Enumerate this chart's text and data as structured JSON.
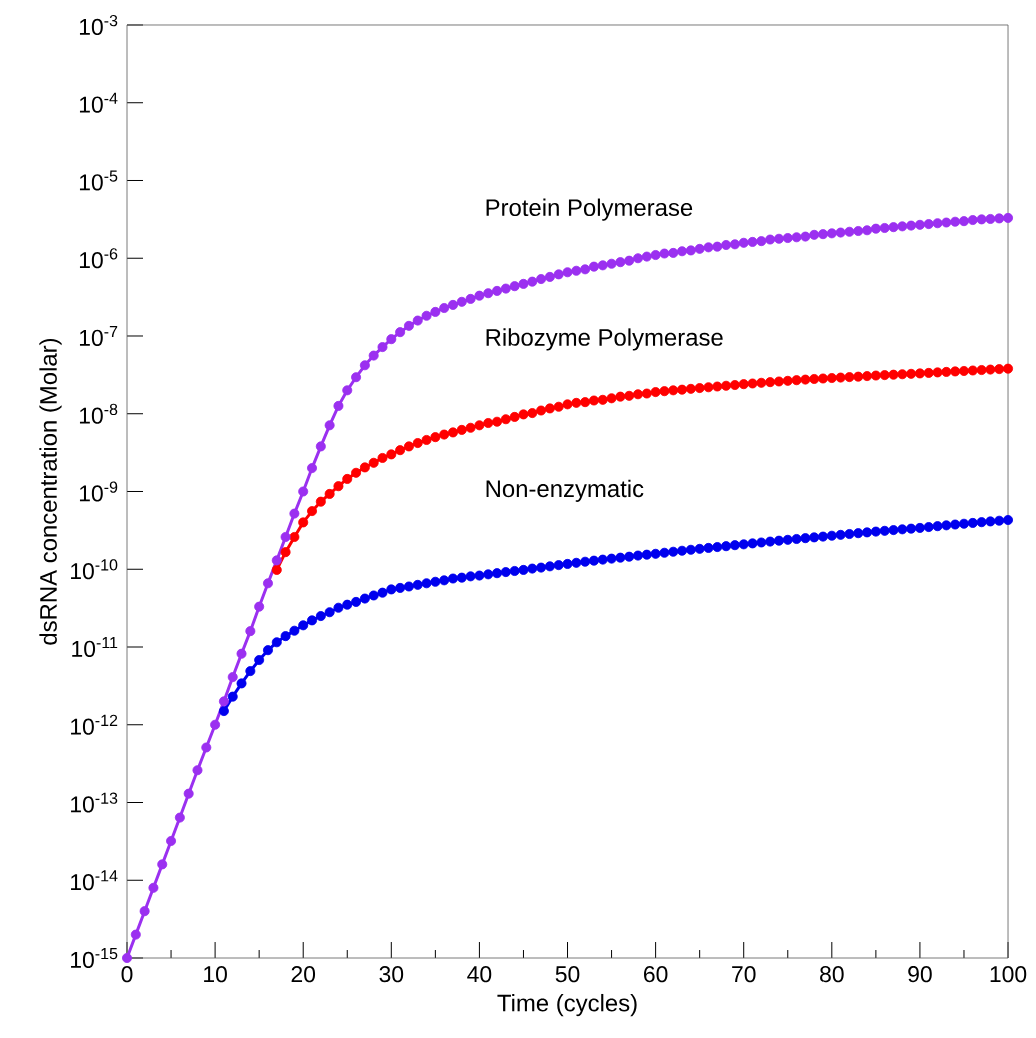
{
  "chart_data": {
    "type": "line",
    "xlabel": "Time (cycles)",
    "ylabel": "dsRNA concentration (Molar)",
    "x": [
      0,
      1,
      2,
      3,
      4,
      5,
      6,
      7,
      8,
      9,
      10,
      11,
      12,
      13,
      14,
      15,
      16,
      17,
      18,
      19,
      20,
      21,
      22,
      23,
      24,
      25,
      26,
      27,
      28,
      29,
      30,
      31,
      32,
      33,
      34,
      35,
      36,
      37,
      38,
      39,
      40,
      41,
      42,
      43,
      44,
      45,
      46,
      47,
      48,
      49,
      50,
      51,
      52,
      53,
      54,
      55,
      56,
      57,
      58,
      59,
      60,
      61,
      62,
      63,
      64,
      65,
      66,
      67,
      68,
      69,
      70,
      71,
      72,
      73,
      74,
      75,
      76,
      77,
      78,
      79,
      80,
      81,
      82,
      83,
      84,
      85,
      86,
      87,
      88,
      89,
      90,
      91,
      92,
      93,
      94,
      95,
      96,
      97,
      98,
      99,
      100
    ],
    "series": [
      {
        "name": "Non-enzymatic",
        "color": "#0000ee",
        "x": [
          11,
          12,
          13,
          14,
          15,
          16,
          17,
          18,
          19,
          20,
          21,
          22,
          23,
          24,
          25,
          26,
          27,
          28,
          29,
          30,
          31,
          32,
          33,
          34,
          35,
          36,
          37,
          38,
          39,
          40,
          41,
          42,
          43,
          44,
          45,
          46,
          47,
          48,
          49,
          50,
          51,
          52,
          53,
          54,
          55,
          56,
          57,
          58,
          59,
          60,
          61,
          62,
          63,
          64,
          65,
          66,
          67,
          68,
          69,
          70,
          71,
          72,
          73,
          74,
          75,
          76,
          77,
          78,
          79,
          80,
          81,
          82,
          83,
          84,
          85,
          86,
          87,
          88,
          89,
          90,
          91,
          92,
          93,
          94,
          95,
          96,
          97,
          98,
          99,
          100
        ],
        "values": [
          1.5e-12,
          2.3e-12,
          3.4e-12,
          4.9e-12,
          6.8e-12,
          9.1e-12,
          1.15e-11,
          1.38e-11,
          1.62e-11,
          1.9e-11,
          2.2e-11,
          2.5e-11,
          2.8e-11,
          3.2e-11,
          3.5e-11,
          3.8e-11,
          4.2e-11,
          4.6e-11,
          5e-11,
          5.5e-11,
          5.75e-11,
          6e-11,
          6.3e-11,
          6.6e-11,
          6.9e-11,
          7.2e-11,
          7.6e-11,
          7.8e-11,
          8.1e-11,
          8.3e-11,
          8.6e-11,
          8.9e-11,
          9.2e-11,
          9.5e-11,
          9.8e-11,
          1.02e-10,
          1.05e-10,
          1.09e-10,
          1.13e-10,
          1.17e-10,
          1.21e-10,
          1.25e-10,
          1.29e-10,
          1.33e-10,
          1.37e-10,
          1.41e-10,
          1.45e-10,
          1.5e-10,
          1.54e-10,
          1.58e-10,
          1.63e-10,
          1.68e-10,
          1.73e-10,
          1.78e-10,
          1.83e-10,
          1.88e-10,
          1.93e-10,
          1.98e-10,
          2.04e-10,
          2.09e-10,
          2.15e-10,
          2.21e-10,
          2.27e-10,
          2.33e-10,
          2.39e-10,
          2.45e-10,
          2.51e-10,
          2.57e-10,
          2.63e-10,
          2.7e-10,
          2.77e-10,
          2.84e-10,
          2.91e-10,
          2.98e-10,
          3.05e-10,
          3.12e-10,
          3.19e-10,
          3.26e-10,
          3.33e-10,
          3.4e-10,
          3.49e-10,
          3.58e-10,
          3.67e-10,
          3.76e-10,
          3.85e-10,
          3.94e-10,
          4.03e-10,
          4.12e-10,
          4.21e-10,
          4.3e-10
        ]
      },
      {
        "name": "Ribozyme Polymerase",
        "color": "#ff0000",
        "x": [
          17,
          18,
          19,
          20,
          21,
          22,
          23,
          24,
          25,
          26,
          27,
          28,
          29,
          30,
          31,
          32,
          33,
          34,
          35,
          36,
          37,
          38,
          39,
          40,
          41,
          42,
          43,
          44,
          45,
          46,
          47,
          48,
          49,
          50,
          51,
          52,
          53,
          54,
          55,
          56,
          57,
          58,
          59,
          60,
          61,
          62,
          63,
          64,
          65,
          66,
          67,
          68,
          69,
          70,
          71,
          72,
          73,
          74,
          75,
          76,
          77,
          78,
          79,
          80,
          81,
          82,
          83,
          84,
          85,
          86,
          87,
          88,
          89,
          90,
          91,
          92,
          93,
          94,
          95,
          96,
          97,
          98,
          99,
          100
        ],
        "values": [
          9.8e-11,
          1.66e-10,
          2.6e-10,
          4e-10,
          5.6e-10,
          7.4e-10,
          9.3e-10,
          1.17e-09,
          1.45e-09,
          1.74e-09,
          2.04e-09,
          2.34e-09,
          2.7e-09,
          3e-09,
          3.4e-09,
          3.8e-09,
          4.2e-09,
          4.6e-09,
          5e-09,
          5.4e-09,
          5.75e-09,
          6.2e-09,
          6.6e-09,
          7.1e-09,
          7.6e-09,
          7.9e-09,
          8.5e-09,
          9.1e-09,
          9.8e-09,
          1.02e-08,
          1.1e-08,
          1.17e-08,
          1.23e-08,
          1.32e-08,
          1.38e-08,
          1.41e-08,
          1.48e-08,
          1.51e-08,
          1.58e-08,
          1.66e-08,
          1.7e-08,
          1.78e-08,
          1.82e-08,
          1.9e-08,
          1.95e-08,
          2e-08,
          2.04e-08,
          2.09e-08,
          2.14e-08,
          2.19e-08,
          2.24e-08,
          2.29e-08,
          2.34e-08,
          2.4e-08,
          2.45e-08,
          2.5e-08,
          2.55e-08,
          2.6e-08,
          2.65e-08,
          2.7e-08,
          2.75e-08,
          2.8e-08,
          2.84e-08,
          2.88e-08,
          2.92e-08,
          2.96e-08,
          3e-08,
          3.05e-08,
          3.1e-08,
          3.14e-08,
          3.18e-08,
          3.22e-08,
          3.26e-08,
          3.3e-08,
          3.35e-08,
          3.4e-08,
          3.45e-08,
          3.5e-08,
          3.55e-08,
          3.6e-08,
          3.65e-08,
          3.7e-08,
          3.75e-08,
          3.8e-08
        ]
      },
      {
        "name": "Protein Polymerase",
        "color": "#9b30f0",
        "values": [
          1e-15,
          2e-15,
          4e-15,
          8e-15,
          1.6e-14,
          3.2e-14,
          6.4e-14,
          1.3e-13,
          2.6e-13,
          5.1e-13,
          1e-12,
          2e-12,
          4.1e-12,
          8.2e-12,
          1.6e-11,
          3.3e-11,
          6.6e-11,
          1.3e-10,
          2.6e-10,
          5.2e-10,
          1e-09,
          2e-09,
          3.8e-09,
          7.1e-09,
          1.26e-08,
          2e-08,
          2.95e-08,
          4.2e-08,
          5.6e-08,
          7.2e-08,
          9.1e-08,
          1.12e-07,
          1.35e-07,
          1.58e-07,
          1.82e-07,
          2.04e-07,
          2.29e-07,
          2.51e-07,
          2.75e-07,
          3e-07,
          3.3e-07,
          3.55e-07,
          3.8e-07,
          4.07e-07,
          4.37e-07,
          4.68e-07,
          5e-07,
          5.4e-07,
          5.75e-07,
          6.2e-07,
          6.6e-07,
          6.9e-07,
          7.2e-07,
          7.8e-07,
          8.1e-07,
          8.5e-07,
          8.9e-07,
          9.3e-07,
          1e-06,
          1.05e-06,
          1.1e-06,
          1.15e-06,
          1.17e-06,
          1.23e-06,
          1.26e-06,
          1.32e-06,
          1.38e-06,
          1.41e-06,
          1.48e-06,
          1.51e-06,
          1.58e-06,
          1.62e-06,
          1.66e-06,
          1.74e-06,
          1.78e-06,
          1.82e-06,
          1.86e-06,
          1.9e-06,
          2e-06,
          2.04e-06,
          2.09e-06,
          2.14e-06,
          2.19e-06,
          2.24e-06,
          2.29e-06,
          2.4e-06,
          2.45e-06,
          2.51e-06,
          2.57e-06,
          2.63e-06,
          2.69e-06,
          2.75e-06,
          2.82e-06,
          2.88e-06,
          2.95e-06,
          3e-06,
          3.1e-06,
          3.16e-06,
          3.2e-06,
          3.25e-06,
          3.3e-06
        ]
      }
    ],
    "xlim": [
      0,
      100
    ],
    "xticks": [
      0,
      10,
      20,
      30,
      40,
      50,
      60,
      70,
      80,
      90,
      100
    ],
    "ylim": [
      1e-15,
      0.001
    ],
    "yticks": [
      {
        "value": 1e-15,
        "label": "10$^{-15}$"
      },
      {
        "value": 1e-14,
        "label": "10$^{-14}$"
      },
      {
        "value": 1e-13,
        "label": "10$^{-13}$"
      },
      {
        "value": 1e-12,
        "label": "10$^{-12}$"
      },
      {
        "value": 1e-11,
        "label": "10$^{-11}$"
      },
      {
        "value": 1e-10,
        "label": "10$^{-10}$"
      },
      {
        "value": 1e-09,
        "label": "10$^{-9}$"
      },
      {
        "value": 1e-08,
        "label": "10$^{-8}$"
      },
      {
        "value": 1e-07,
        "label": "10$^{-7}$"
      },
      {
        "value": 1e-06,
        "label": "10$^{-6}$"
      },
      {
        "value": 1e-05,
        "label": "10$^{-5}$"
      },
      {
        "value": 0.0001,
        "label": "10$^{-4}$"
      },
      {
        "value": 0.001,
        "label": "10$^{-3}$"
      }
    ],
    "log": "y",
    "marker": "circle",
    "line_style": "solid"
  }
}
